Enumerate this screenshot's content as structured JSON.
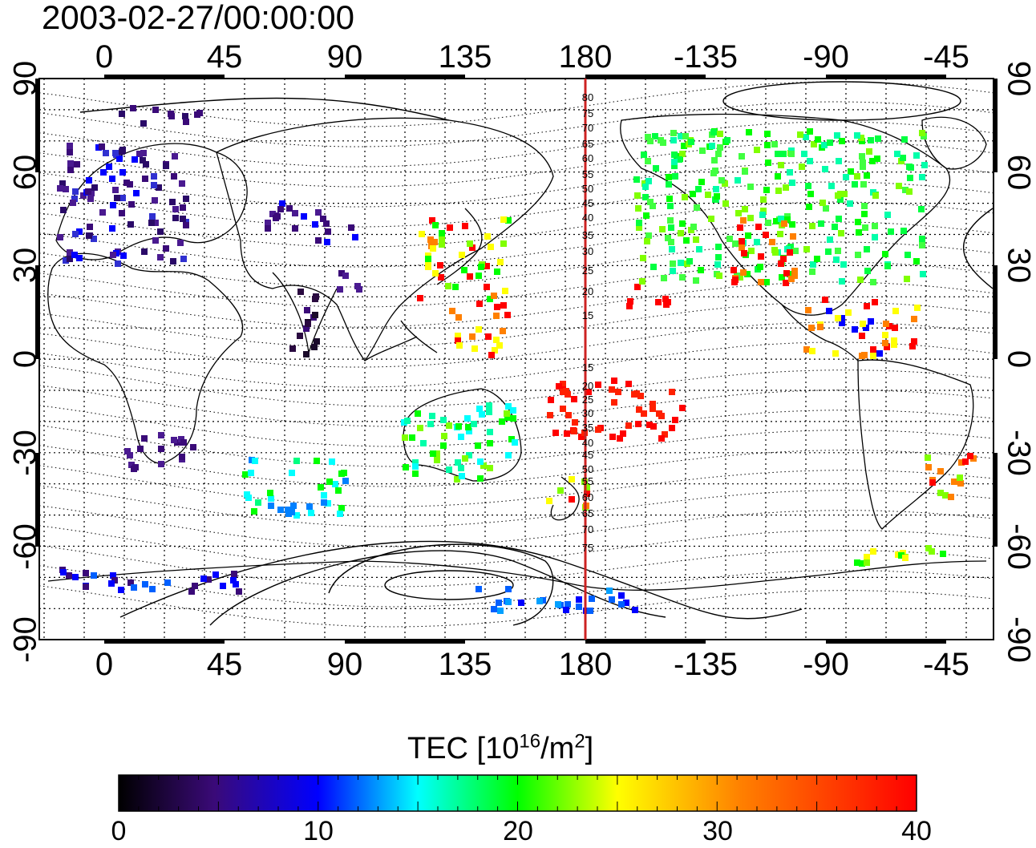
{
  "timestamp": "2003-02-27/00:00:00",
  "map": {
    "lon_labels": [
      "0",
      "45",
      "90",
      "135",
      "180",
      "-135",
      "-90",
      "-45"
    ],
    "lat_labels": [
      "90",
      "60",
      "30",
      "0",
      "-30",
      "-60",
      "-90"
    ],
    "meridian_labels": [
      "80",
      "75",
      "70",
      "65",
      "60",
      "55",
      "50",
      "45",
      "40",
      "35",
      "30",
      "25",
      "20",
      "15",
      "15",
      "20",
      "25",
      "30",
      "35",
      "40",
      "45",
      "50",
      "55",
      "60",
      "65",
      "70",
      "75"
    ]
  },
  "colorbar": {
    "title_prefix": "TEC  [10",
    "title_sup1": "16",
    "title_mid": "/m",
    "title_sup2": "2",
    "title_suffix": "]",
    "ticks": [
      "0",
      "10",
      "20",
      "30",
      "40"
    ]
  },
  "colors": {
    "scale": [
      "#000000",
      "#3a0a78",
      "#0000ff",
      "#00ffff",
      "#00ff00",
      "#ffff00",
      "#ff8000",
      "#ff0000"
    ],
    "meridian_line": "#cc2222"
  }
}
